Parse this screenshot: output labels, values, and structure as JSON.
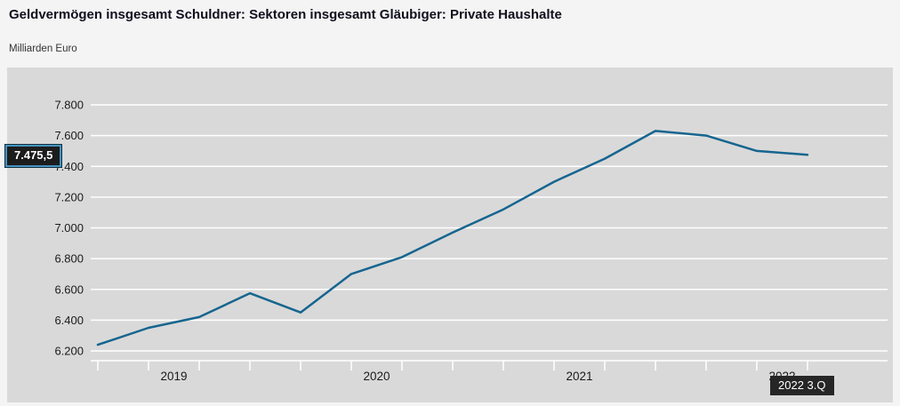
{
  "header": {
    "title": "Geldvermögen insgesamt Schuldner: Sektoren insgesamt Gläubiger: Private Haushalte",
    "subtitle": "Milliarden Euro"
  },
  "tooltip": {
    "value_label": "7.475,5"
  },
  "x_marker": {
    "label": "2022 3.Q"
  },
  "chart_data": {
    "type": "line",
    "title": "Geldvermögen insgesamt Schuldner: Sektoren insgesamt Gläubiger: Private Haushalte",
    "ylabel": "Milliarden Euro",
    "x": [
      "2019 Q1",
      "2019 Q2",
      "2019 Q3",
      "2019 Q4",
      "2020 Q1",
      "2020 Q2",
      "2020 Q3",
      "2020 Q4",
      "2021 Q1",
      "2021 Q2",
      "2021 Q3",
      "2021 Q4",
      "2022 Q1",
      "2022 Q2",
      "2022 Q3"
    ],
    "series": [
      {
        "name": "Geldvermögen insgesamt",
        "values": [
          6240,
          6350,
          6420,
          6575,
          6450,
          6700,
          6810,
          6970,
          7120,
          7300,
          7450,
          7630,
          7600,
          7500,
          7475.5
        ]
      }
    ],
    "highlighted_point": {
      "x": "2022 Q3",
      "value": 7475.5,
      "value_label": "7.475,5"
    },
    "ylim": [
      6100,
      7900
    ],
    "y_ticks": [
      {
        "value": 6200,
        "label": "6.200"
      },
      {
        "value": 6400,
        "label": "6.400"
      },
      {
        "value": 6600,
        "label": "6.600"
      },
      {
        "value": 6800,
        "label": "6.800"
      },
      {
        "value": 7000,
        "label": "7.000"
      },
      {
        "value": 7200,
        "label": "7.200"
      },
      {
        "value": 7400,
        "label": "7.400"
      },
      {
        "value": 7600,
        "label": "7.600"
      },
      {
        "value": 7800,
        "label": "7.800"
      }
    ],
    "year_labels": [
      "2019",
      "2020",
      "2021",
      "2022"
    ],
    "grid": true,
    "legend_position": "none",
    "colors": {
      "line": "#16658f",
      "plot_background": "#d9d9d9",
      "grid": "#ffffff",
      "axis_text": "#1a1a1a"
    }
  }
}
